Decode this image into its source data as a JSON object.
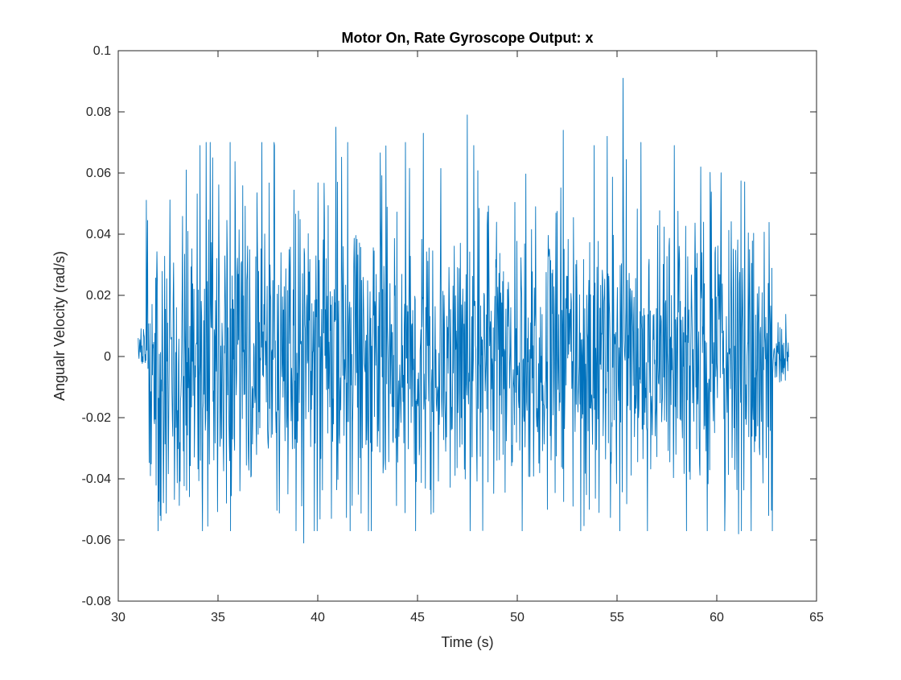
{
  "chart_data": {
    "type": "line",
    "title": "Motor On, Rate Gyroscope Output: x",
    "xlabel": "Time (s)",
    "ylabel": "Angualr Velocity (rad/s)",
    "xlim": [
      30,
      65
    ],
    "ylim": [
      -0.08,
      0.1
    ],
    "x_ticks": [
      30,
      35,
      40,
      45,
      50,
      55,
      60,
      65
    ],
    "x_tick_labels": [
      "30",
      "35",
      "40",
      "45",
      "50",
      "55",
      "60",
      "65"
    ],
    "y_ticks": [
      -0.08,
      -0.06,
      -0.04,
      -0.02,
      0,
      0.02,
      0.04,
      0.06,
      0.08,
      0.1
    ],
    "y_tick_labels": [
      "-0.08",
      "-0.06",
      "-0.04",
      "-0.02",
      "0",
      "0.02",
      "0.04",
      "0.06",
      "0.08",
      "0.1"
    ],
    "grid": false,
    "box": true,
    "series": [
      {
        "color": "#0072BD",
        "x_range": [
          31.0,
          63.6
        ],
        "approx_samples": 1600,
        "quiet_segments": [
          [
            31.0,
            31.4
          ],
          [
            62.8,
            63.6
          ]
        ],
        "quiet_amplitude": 0.012,
        "active_amplitude": 0.06,
        "peaks": [
          {
            "x": 55.3,
            "y": 0.091
          },
          {
            "x": 47.5,
            "y": 0.079
          },
          {
            "x": 40.9,
            "y": 0.075
          },
          {
            "x": 52.3,
            "y": 0.074
          },
          {
            "x": 45.3,
            "y": 0.073
          },
          {
            "x": 54.5,
            "y": 0.072
          },
          {
            "x": 44.4,
            "y": 0.07
          },
          {
            "x": 34.4,
            "y": 0.07
          },
          {
            "x": 34.6,
            "y": 0.07
          },
          {
            "x": 35.6,
            "y": 0.07
          },
          {
            "x": 37.2,
            "y": 0.07
          },
          {
            "x": 37.8,
            "y": 0.07
          },
          {
            "x": 41.5,
            "y": 0.07
          },
          {
            "x": 56.2,
            "y": 0.07
          },
          {
            "x": 33.4,
            "y": 0.061
          },
          {
            "x": 59.2,
            "y": 0.062
          },
          {
            "x": 39.3,
            "y": -0.061
          },
          {
            "x": 61.1,
            "y": -0.058
          },
          {
            "x": 32.1,
            "y": -0.052
          },
          {
            "x": 62.6,
            "y": -0.052
          },
          {
            "x": 45.8,
            "y": -0.051
          },
          {
            "x": 51.5,
            "y": -0.05
          },
          {
            "x": 53.6,
            "y": -0.05
          }
        ]
      }
    ]
  }
}
